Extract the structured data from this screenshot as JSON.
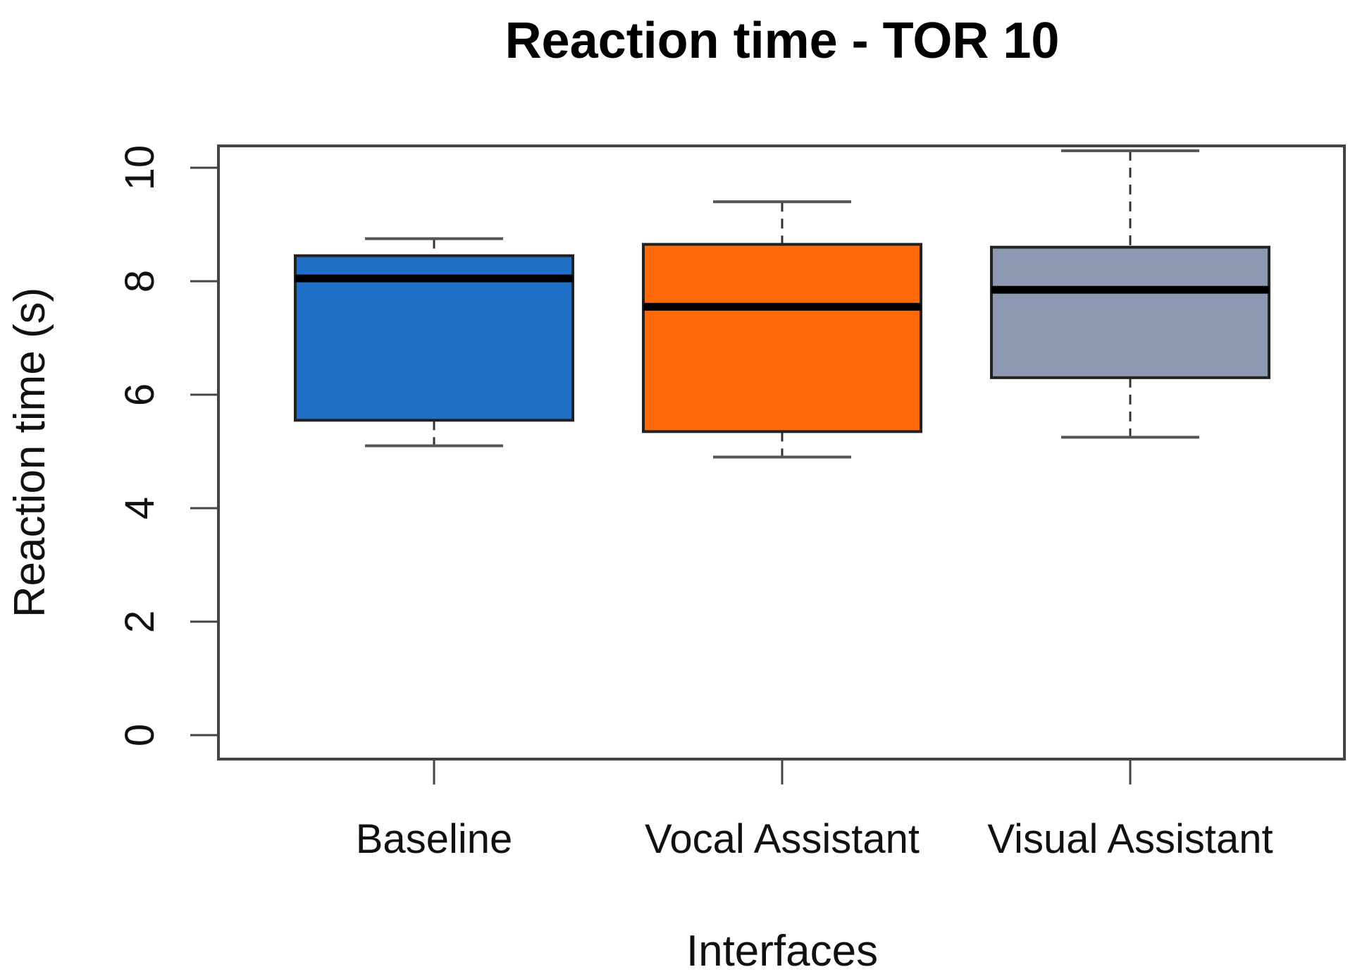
{
  "chart_data": {
    "type": "boxplot",
    "title": "Reaction time - TOR 10",
    "xlabel": "Interfaces",
    "ylabel": "Reaction time (s)",
    "ylim": [
      0,
      10
    ],
    "yticks": [
      "0",
      "2",
      "4",
      "6",
      "8",
      "10"
    ],
    "categories": [
      "Baseline",
      "Vocal Assistant",
      "Visual Assistant"
    ],
    "boxes": [
      {
        "name": "Baseline",
        "whisker_low": 5.1,
        "q1": 5.55,
        "median": 8.05,
        "q3": 8.45,
        "whisker_high": 8.75,
        "color": "#1f6fc8"
      },
      {
        "name": "Vocal Assistant",
        "whisker_low": 4.9,
        "q1": 5.35,
        "median": 7.55,
        "q3": 8.65,
        "whisker_high": 9.4,
        "color": "#ff6a08"
      },
      {
        "name": "Visual Assistant",
        "whisker_low": 5.25,
        "q1": 6.3,
        "median": 7.85,
        "q3": 8.6,
        "whisker_high": 10.3,
        "color": "#8d98b3"
      }
    ]
  }
}
